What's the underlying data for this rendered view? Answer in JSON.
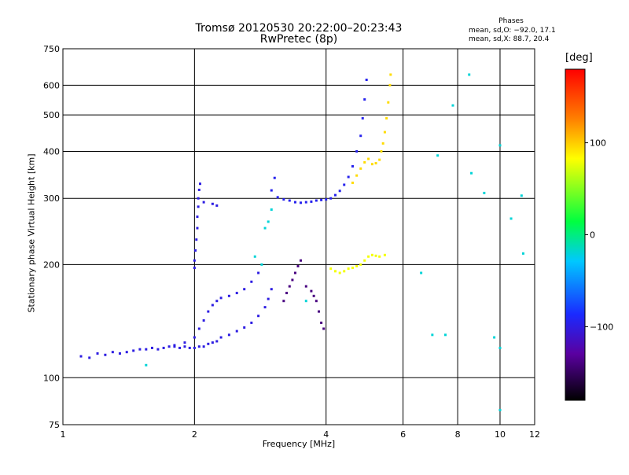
{
  "header": {
    "title_line1": "Tromsø 20120530 20:22:00–20:23:43",
    "title_line2": "RwPretec (8p)"
  },
  "phases_box": {
    "heading": "Phases",
    "line_o": "mean, sd,O: −92.0, 17.1",
    "line_x": "mean, sd,X: 88.7, 20.4"
  },
  "colorbar": {
    "unit_label": "[deg]",
    "ticks": [
      {
        "value": 100,
        "label": "100"
      },
      {
        "value": 0,
        "label": "0"
      },
      {
        "value": -100,
        "label": "−100"
      }
    ],
    "range": [
      -180,
      180
    ],
    "colors": [
      "#000000",
      "#5a00a0",
      "#1a2aff",
      "#00c8ff",
      "#00ff40",
      "#ffff00",
      "#ff8000",
      "#ff0000"
    ]
  },
  "chart_data": {
    "type": "scatter",
    "title": "Tromsø 20120530 20:22:00–20:23:43",
    "subtitle": "RwPretec (8p)",
    "xlabel": "Frequency [MHz]",
    "ylabel": "Stationary phase Virtual Height [km]",
    "x_scale": "log",
    "y_scale": "log",
    "xlim": [
      1,
      12
    ],
    "ylim": [
      75,
      750
    ],
    "x_ticks": [
      {
        "value": 1,
        "label": "1"
      },
      {
        "value": 2,
        "label": "2"
      },
      {
        "value": 4,
        "label": "4"
      },
      {
        "value": 6,
        "label": "6"
      },
      {
        "value": 8,
        "label": "8"
      },
      {
        "value": 10,
        "label": "10"
      },
      {
        "value": 12,
        "label": "12"
      }
    ],
    "y_ticks": [
      {
        "value": 75,
        "label": "75"
      },
      {
        "value": 100,
        "label": "100"
      },
      {
        "value": 200,
        "label": "200"
      },
      {
        "value": 300,
        "label": "300"
      },
      {
        "value": 400,
        "label": "400"
      },
      {
        "value": 500,
        "label": "500"
      },
      {
        "value": 600,
        "label": "600"
      },
      {
        "value": 750,
        "label": "750"
      }
    ],
    "grid": true,
    "color_by": "phase_deg",
    "series": [
      {
        "trace": "o_mode_lower",
        "phase_deg": -100,
        "points": [
          [
            1.1,
            114
          ],
          [
            1.15,
            113
          ],
          [
            1.2,
            116
          ],
          [
            1.25,
            115
          ],
          [
            1.3,
            117
          ],
          [
            1.35,
            116
          ],
          [
            1.4,
            117
          ],
          [
            1.45,
            118
          ],
          [
            1.5,
            119
          ],
          [
            1.55,
            119
          ],
          [
            1.6,
            120
          ],
          [
            1.65,
            119
          ],
          [
            1.7,
            120
          ],
          [
            1.75,
            121
          ],
          [
            1.8,
            121
          ],
          [
            1.85,
            120
          ],
          [
            1.9,
            121
          ],
          [
            1.95,
            120
          ],
          [
            2.0,
            120
          ],
          [
            2.05,
            121
          ],
          [
            2.1,
            121
          ],
          [
            2.15,
            123
          ],
          [
            2.2,
            124
          ],
          [
            2.25,
            125
          ],
          [
            2.3,
            128
          ],
          [
            2.4,
            130
          ],
          [
            2.5,
            133
          ],
          [
            2.6,
            136
          ],
          [
            2.7,
            140
          ],
          [
            2.8,
            146
          ],
          [
            2.9,
            154
          ],
          [
            2.95,
            162
          ],
          [
            3.0,
            172
          ]
        ]
      },
      {
        "trace": "o_mode_upper",
        "phase_deg": -100,
        "points": [
          [
            1.8,
            122
          ],
          [
            1.9,
            124
          ],
          [
            2.0,
            128
          ],
          [
            2.05,
            135
          ],
          [
            2.1,
            142
          ],
          [
            2.15,
            150
          ],
          [
            2.2,
            156
          ],
          [
            2.25,
            160
          ],
          [
            2.3,
            163
          ],
          [
            2.4,
            165
          ],
          [
            2.5,
            168
          ],
          [
            2.6,
            172
          ],
          [
            2.7,
            180
          ],
          [
            2.8,
            190
          ]
        ]
      },
      {
        "trace": "e_cusp",
        "phase_deg": -100,
        "points": [
          [
            2.0,
            196
          ],
          [
            2.0,
            205
          ],
          [
            2.01,
            218
          ],
          [
            2.02,
            233
          ],
          [
            2.03,
            250
          ],
          [
            2.03,
            268
          ],
          [
            2.04,
            285
          ],
          [
            2.04,
            300
          ],
          [
            2.05,
            316
          ],
          [
            2.06,
            328
          ],
          [
            2.1,
            293
          ],
          [
            2.2,
            290
          ],
          [
            2.25,
            287
          ]
        ]
      },
      {
        "trace": "f_trace_o",
        "phase_deg": -95,
        "points": [
          [
            3.05,
            340
          ],
          [
            3.0,
            315
          ],
          [
            3.1,
            302
          ],
          [
            3.2,
            298
          ],
          [
            3.3,
            296
          ],
          [
            3.4,
            293
          ],
          [
            3.5,
            292
          ],
          [
            3.6,
            293
          ],
          [
            3.7,
            294
          ],
          [
            3.8,
            296
          ],
          [
            3.9,
            297
          ],
          [
            4.0,
            298
          ],
          [
            4.1,
            300
          ],
          [
            4.2,
            306
          ],
          [
            4.3,
            314
          ],
          [
            4.4,
            326
          ],
          [
            4.5,
            342
          ],
          [
            4.6,
            365
          ],
          [
            4.7,
            400
          ],
          [
            4.8,
            440
          ],
          [
            4.85,
            490
          ],
          [
            4.9,
            550
          ],
          [
            4.95,
            620
          ]
        ]
      },
      {
        "trace": "f_trace_x",
        "phase_deg": 95,
        "points": [
          [
            4.6,
            330
          ],
          [
            4.7,
            345
          ],
          [
            4.8,
            360
          ],
          [
            4.9,
            374
          ],
          [
            5.0,
            382
          ],
          [
            5.1,
            370
          ],
          [
            5.2,
            372
          ],
          [
            5.3,
            380
          ],
          [
            5.35,
            400
          ],
          [
            5.4,
            420
          ],
          [
            5.45,
            450
          ],
          [
            5.5,
            490
          ],
          [
            5.55,
            540
          ],
          [
            5.6,
            600
          ],
          [
            5.62,
            640
          ]
        ]
      },
      {
        "trace": "e_layer_x",
        "phase_deg": 80,
        "points": [
          [
            4.1,
            195
          ],
          [
            4.2,
            192
          ],
          [
            4.3,
            190
          ],
          [
            4.4,
            192
          ],
          [
            4.5,
            195
          ],
          [
            4.6,
            196
          ],
          [
            4.7,
            198
          ],
          [
            4.8,
            200
          ],
          [
            4.9,
            205
          ],
          [
            5.0,
            210
          ],
          [
            5.1,
            212
          ],
          [
            5.2,
            211
          ],
          [
            5.3,
            210
          ],
          [
            5.45,
            212
          ]
        ]
      },
      {
        "trace": "mixed_mid",
        "phase_deg": -140,
        "points": [
          [
            3.2,
            160
          ],
          [
            3.25,
            168
          ],
          [
            3.3,
            175
          ],
          [
            3.35,
            182
          ],
          [
            3.4,
            190
          ],
          [
            3.45,
            198
          ],
          [
            3.5,
            205
          ],
          [
            3.6,
            175
          ],
          [
            3.7,
            170
          ],
          [
            3.75,
            165
          ],
          [
            3.8,
            160
          ],
          [
            3.85,
            150
          ],
          [
            3.9,
            140
          ],
          [
            3.95,
            135
          ]
        ]
      },
      {
        "trace": "scatter_misc",
        "phase_deg": -20,
        "points": [
          [
            2.9,
            250
          ],
          [
            2.95,
            260
          ],
          [
            3.0,
            280
          ],
          [
            2.85,
            200
          ],
          [
            2.75,
            210
          ],
          [
            3.6,
            160
          ],
          [
            6.6,
            190
          ],
          [
            7.2,
            390
          ],
          [
            7.8,
            530
          ],
          [
            8.5,
            640
          ],
          [
            8.6,
            350
          ],
          [
            9.2,
            310
          ],
          [
            10.0,
            415
          ],
          [
            10.0,
            120
          ],
          [
            10.0,
            82
          ],
          [
            10.6,
            265
          ],
          [
            11.2,
            305
          ],
          [
            11.3,
            214
          ],
          [
            7.0,
            130
          ],
          [
            7.5,
            130
          ],
          [
            9.7,
            128
          ],
          [
            1.55,
            108
          ]
        ]
      }
    ]
  }
}
